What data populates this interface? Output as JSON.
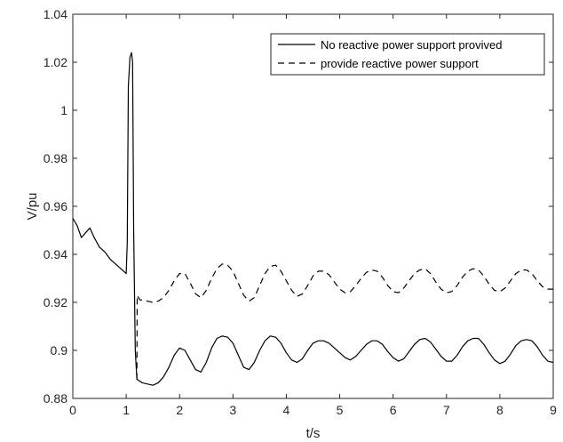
{
  "chart_data": {
    "type": "line",
    "title": "",
    "xlabel": "t/s",
    "ylabel": "V/pu",
    "xlim": [
      0,
      9
    ],
    "ylim": [
      0.88,
      1.04
    ],
    "x_ticks": [
      0,
      1,
      2,
      3,
      4,
      5,
      6,
      7,
      8,
      9
    ],
    "y_ticks": [
      0.88,
      0.9,
      0.92,
      0.94,
      0.96,
      0.98,
      1,
      1.02,
      1.04
    ],
    "x_tick_labels": [
      "0",
      "1",
      "2",
      "3",
      "4",
      "5",
      "6",
      "7",
      "8",
      "9"
    ],
    "y_tick_labels": [
      "0.88",
      "0.9",
      "0.92",
      "0.94",
      "0.96",
      "0.98",
      "1",
      "1.02",
      "1.04"
    ],
    "grid": false,
    "legend_position": "top-right",
    "series": [
      {
        "name": "No reactive power support provived",
        "style": "solid",
        "color": "#000000",
        "points": [
          [
            0.0,
            0.955
          ],
          [
            0.08,
            0.952
          ],
          [
            0.16,
            0.947
          ],
          [
            0.24,
            0.949
          ],
          [
            0.32,
            0.951
          ],
          [
            0.4,
            0.947
          ],
          [
            0.5,
            0.943
          ],
          [
            0.6,
            0.941
          ],
          [
            0.7,
            0.938
          ],
          [
            0.8,
            0.936
          ],
          [
            0.9,
            0.934
          ],
          [
            1.0,
            0.932
          ],
          [
            1.02,
            0.945
          ],
          [
            1.04,
            1.01
          ],
          [
            1.07,
            1.022
          ],
          [
            1.1,
            1.024
          ],
          [
            1.12,
            1.02
          ],
          [
            1.14,
            0.95
          ],
          [
            1.17,
            0.9
          ],
          [
            1.2,
            0.888
          ],
          [
            1.3,
            0.8865
          ],
          [
            1.4,
            0.886
          ],
          [
            1.5,
            0.8855
          ],
          [
            1.6,
            0.8865
          ],
          [
            1.7,
            0.889
          ],
          [
            1.8,
            0.893
          ],
          [
            1.9,
            0.898
          ],
          [
            2.0,
            0.901
          ],
          [
            2.1,
            0.9
          ],
          [
            2.2,
            0.896
          ],
          [
            2.3,
            0.892
          ],
          [
            2.4,
            0.891
          ],
          [
            2.5,
            0.895
          ],
          [
            2.6,
            0.901
          ],
          [
            2.7,
            0.905
          ],
          [
            2.8,
            0.906
          ],
          [
            2.9,
            0.9055
          ],
          [
            3.0,
            0.903
          ],
          [
            3.1,
            0.898
          ],
          [
            3.2,
            0.893
          ],
          [
            3.3,
            0.892
          ],
          [
            3.4,
            0.895
          ],
          [
            3.5,
            0.9
          ],
          [
            3.6,
            0.904
          ],
          [
            3.7,
            0.906
          ],
          [
            3.8,
            0.9055
          ],
          [
            3.9,
            0.903
          ],
          [
            4.0,
            0.899
          ],
          [
            4.1,
            0.896
          ],
          [
            4.2,
            0.895
          ],
          [
            4.3,
            0.8965
          ],
          [
            4.4,
            0.9
          ],
          [
            4.5,
            0.903
          ],
          [
            4.6,
            0.904
          ],
          [
            4.7,
            0.904
          ],
          [
            4.8,
            0.903
          ],
          [
            4.9,
            0.901
          ],
          [
            5.0,
            0.899
          ],
          [
            5.1,
            0.897
          ],
          [
            5.2,
            0.896
          ],
          [
            5.3,
            0.8975
          ],
          [
            5.4,
            0.9
          ],
          [
            5.5,
            0.9025
          ],
          [
            5.6,
            0.904
          ],
          [
            5.7,
            0.904
          ],
          [
            5.8,
            0.9025
          ],
          [
            5.9,
            0.8995
          ],
          [
            6.0,
            0.897
          ],
          [
            6.1,
            0.8955
          ],
          [
            6.2,
            0.8965
          ],
          [
            6.3,
            0.8995
          ],
          [
            6.4,
            0.9025
          ],
          [
            6.5,
            0.9045
          ],
          [
            6.6,
            0.905
          ],
          [
            6.7,
            0.9035
          ],
          [
            6.8,
            0.9005
          ],
          [
            6.9,
            0.8975
          ],
          [
            7.0,
            0.8955
          ],
          [
            7.1,
            0.8955
          ],
          [
            7.2,
            0.898
          ],
          [
            7.3,
            0.9015
          ],
          [
            7.4,
            0.904
          ],
          [
            7.5,
            0.905
          ],
          [
            7.6,
            0.905
          ],
          [
            7.7,
            0.9025
          ],
          [
            7.8,
            0.899
          ],
          [
            7.9,
            0.896
          ],
          [
            8.0,
            0.8945
          ],
          [
            8.1,
            0.8955
          ],
          [
            8.2,
            0.8985
          ],
          [
            8.3,
            0.902
          ],
          [
            8.4,
            0.904
          ],
          [
            8.5,
            0.9045
          ],
          [
            8.6,
            0.904
          ],
          [
            8.7,
            0.9015
          ],
          [
            8.8,
            0.898
          ],
          [
            8.9,
            0.8955
          ],
          [
            9.0,
            0.895
          ]
        ]
      },
      {
        "name": "provide reactive power support",
        "style": "dashed",
        "color": "#000000",
        "points": [
          [
            1.2,
            0.888
          ],
          [
            1.205,
            0.92
          ],
          [
            1.21,
            0.923
          ],
          [
            1.23,
            0.922
          ],
          [
            1.26,
            0.921
          ],
          [
            1.3,
            0.921
          ],
          [
            1.4,
            0.9205
          ],
          [
            1.5,
            0.92
          ],
          [
            1.6,
            0.9205
          ],
          [
            1.7,
            0.922
          ],
          [
            1.8,
            0.925
          ],
          [
            1.9,
            0.929
          ],
          [
            2.0,
            0.932
          ],
          [
            2.1,
            0.932
          ],
          [
            2.2,
            0.928
          ],
          [
            2.3,
            0.9235
          ],
          [
            2.4,
            0.922
          ],
          [
            2.5,
            0.925
          ],
          [
            2.6,
            0.93
          ],
          [
            2.7,
            0.934
          ],
          [
            2.8,
            0.936
          ],
          [
            2.9,
            0.9355
          ],
          [
            3.0,
            0.933
          ],
          [
            3.1,
            0.928
          ],
          [
            3.2,
            0.923
          ],
          [
            3.3,
            0.9205
          ],
          [
            3.4,
            0.922
          ],
          [
            3.5,
            0.927
          ],
          [
            3.6,
            0.932
          ],
          [
            3.7,
            0.935
          ],
          [
            3.8,
            0.9355
          ],
          [
            3.9,
            0.933
          ],
          [
            4.0,
            0.929
          ],
          [
            4.1,
            0.925
          ],
          [
            4.2,
            0.9225
          ],
          [
            4.3,
            0.9235
          ],
          [
            4.4,
            0.927
          ],
          [
            4.5,
            0.931
          ],
          [
            4.6,
            0.933
          ],
          [
            4.7,
            0.933
          ],
          [
            4.8,
            0.9315
          ],
          [
            4.9,
            0.9285
          ],
          [
            5.0,
            0.9255
          ],
          [
            5.1,
            0.924
          ],
          [
            5.2,
            0.9245
          ],
          [
            5.3,
            0.927
          ],
          [
            5.4,
            0.93
          ],
          [
            5.5,
            0.9325
          ],
          [
            5.6,
            0.9335
          ],
          [
            5.7,
            0.933
          ],
          [
            5.8,
            0.9305
          ],
          [
            5.9,
            0.927
          ],
          [
            6.0,
            0.9245
          ],
          [
            6.1,
            0.924
          ],
          [
            6.2,
            0.926
          ],
          [
            6.3,
            0.929
          ],
          [
            6.4,
            0.932
          ],
          [
            6.5,
            0.9335
          ],
          [
            6.6,
            0.934
          ],
          [
            6.7,
            0.932
          ],
          [
            6.8,
            0.9285
          ],
          [
            6.9,
            0.9255
          ],
          [
            7.0,
            0.924
          ],
          [
            7.1,
            0.9245
          ],
          [
            7.2,
            0.927
          ],
          [
            7.3,
            0.9305
          ],
          [
            7.4,
            0.933
          ],
          [
            7.5,
            0.934
          ],
          [
            7.6,
            0.9335
          ],
          [
            7.7,
            0.931
          ],
          [
            7.8,
            0.9275
          ],
          [
            7.9,
            0.925
          ],
          [
            8.0,
            0.9245
          ],
          [
            8.1,
            0.926
          ],
          [
            8.2,
            0.929
          ],
          [
            8.3,
            0.932
          ],
          [
            8.4,
            0.9335
          ],
          [
            8.5,
            0.9335
          ],
          [
            8.6,
            0.932
          ],
          [
            8.7,
            0.929
          ],
          [
            8.8,
            0.9265
          ],
          [
            8.9,
            0.9255
          ],
          [
            9.0,
            0.9255
          ]
        ]
      }
    ]
  }
}
